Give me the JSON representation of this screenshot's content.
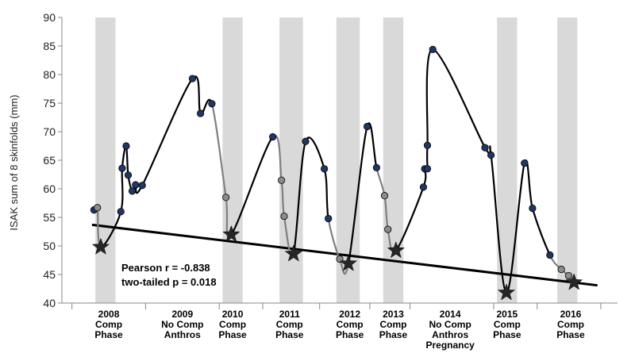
{
  "chart_data": {
    "type": "line",
    "ylabel": "ISAK sum of 8 skinfolds (mm)",
    "ylim": [
      40,
      90
    ],
    "yticks": [
      40,
      45,
      50,
      55,
      60,
      65,
      70,
      75,
      80,
      85,
      90
    ],
    "grid": false,
    "comp_phase_bands": [
      {
        "label": "2008 Comp Phase",
        "x_start": 0.9,
        "x_end": 1.2
      },
      {
        "label": "2010 Comp Phase",
        "x_start": 2.8,
        "x_end": 3.1
      },
      {
        "label": "2011 Comp Phase",
        "x_start": 3.65,
        "x_end": 4.0
      },
      {
        "label": "2012 Comp Phase",
        "x_start": 4.5,
        "x_end": 4.85
      },
      {
        "label": "2013 Comp Phase",
        "x_start": 5.2,
        "x_end": 5.5
      },
      {
        "label": "2015 Comp Phase",
        "x_start": 6.9,
        "x_end": 7.2
      },
      {
        "label": "2016 Comp Phase",
        "x_start": 7.8,
        "x_end": 8.1
      }
    ],
    "x_categories": [
      {
        "x": 1.1,
        "lines": [
          "2008",
          "Comp",
          "Phase"
        ]
      },
      {
        "x": 2.2,
        "lines": [
          "2009",
          "No Comp",
          "Anthros"
        ]
      },
      {
        "x": 2.95,
        "lines": [
          "2010",
          "Comp",
          "Phase"
        ]
      },
      {
        "x": 3.8,
        "lines": [
          "2011",
          "Comp",
          "Phase"
        ]
      },
      {
        "x": 4.7,
        "lines": [
          "2012",
          "Comp",
          "Phase"
        ]
      },
      {
        "x": 5.35,
        "lines": [
          "2013",
          "Comp",
          "Phase"
        ]
      },
      {
        "x": 6.2,
        "lines": [
          "2014",
          "No Comp",
          "Anthros",
          "Pregnancy"
        ]
      },
      {
        "x": 7.05,
        "lines": [
          "2015",
          "Comp",
          "Phase"
        ]
      },
      {
        "x": 8.0,
        "lines": [
          "2016",
          "Comp",
          "Phase"
        ]
      }
    ],
    "series": [
      {
        "points": [
          {
            "x": 0.88,
            "y": 56.3,
            "phase": "offseason"
          },
          {
            "x": 0.93,
            "y": 56.7,
            "phase": "comp"
          },
          {
            "x": 0.98,
            "y": 49.8,
            "phase": "comp_low"
          },
          {
            "x": 1.28,
            "y": 56.0,
            "phase": "offseason"
          },
          {
            "x": 1.3,
            "y": 63.6,
            "phase": "offseason"
          },
          {
            "x": 1.36,
            "y": 67.5,
            "phase": "offseason"
          },
          {
            "x": 1.39,
            "y": 62.4,
            "phase": "offseason"
          },
          {
            "x": 1.45,
            "y": 59.6,
            "phase": "offseason"
          },
          {
            "x": 1.5,
            "y": 60.7,
            "phase": "offseason"
          },
          {
            "x": 1.6,
            "y": 60.6,
            "phase": "offseason"
          },
          {
            "x": 2.35,
            "y": 79.3,
            "phase": "offseason"
          },
          {
            "x": 2.47,
            "y": 73.2,
            "phase": "offseason"
          },
          {
            "x": 2.64,
            "y": 74.9,
            "phase": "offseason"
          },
          {
            "x": 2.85,
            "y": 58.5,
            "phase": "comp"
          },
          {
            "x": 2.93,
            "y": 52.0,
            "phase": "comp_low"
          },
          {
            "x": 3.55,
            "y": 69.1,
            "phase": "offseason"
          },
          {
            "x": 3.68,
            "y": 61.5,
            "phase": "comp"
          },
          {
            "x": 3.72,
            "y": 55.2,
            "phase": "comp"
          },
          {
            "x": 3.86,
            "y": 48.6,
            "phase": "comp_low"
          },
          {
            "x": 4.04,
            "y": 68.3,
            "phase": "offseason"
          },
          {
            "x": 4.32,
            "y": 63.5,
            "phase": "offseason"
          },
          {
            "x": 4.38,
            "y": 54.8,
            "phase": "offseason"
          },
          {
            "x": 4.55,
            "y": 47.7,
            "phase": "comp"
          },
          {
            "x": 4.68,
            "y": 46.9,
            "phase": "comp_low"
          },
          {
            "x": 4.96,
            "y": 70.9,
            "phase": "offseason"
          },
          {
            "x": 5.1,
            "y": 63.7,
            "phase": "offseason"
          },
          {
            "x": 5.22,
            "y": 58.8,
            "phase": "comp"
          },
          {
            "x": 5.27,
            "y": 52.9,
            "phase": "comp"
          },
          {
            "x": 5.39,
            "y": 49.2,
            "phase": "comp_low"
          },
          {
            "x": 5.8,
            "y": 60.3,
            "phase": "offseason"
          },
          {
            "x": 5.82,
            "y": 63.5,
            "phase": "offseason"
          },
          {
            "x": 5.86,
            "y": 63.5,
            "phase": "offseason"
          },
          {
            "x": 5.86,
            "y": 67.6,
            "phase": "offseason"
          },
          {
            "x": 5.94,
            "y": 84.4,
            "phase": "offseason"
          },
          {
            "x": 6.72,
            "y": 67.2,
            "phase": "offseason"
          },
          {
            "x": 6.81,
            "y": 65.9,
            "phase": "offseason"
          },
          {
            "x": 7.04,
            "y": 41.8,
            "phase": "comp_low"
          },
          {
            "x": 7.31,
            "y": 64.5,
            "phase": "offseason"
          },
          {
            "x": 7.43,
            "y": 56.6,
            "phase": "offseason"
          },
          {
            "x": 7.69,
            "y": 48.4,
            "phase": "offseason"
          },
          {
            "x": 7.86,
            "y": 45.9,
            "phase": "comp"
          },
          {
            "x": 7.97,
            "y": 44.8,
            "phase": "comp"
          },
          {
            "x": 8.05,
            "y": 43.6,
            "phase": "comp_low"
          }
        ]
      }
    ],
    "trendline": {
      "x1": 0.85,
      "y1": 53.7,
      "x2": 8.4,
      "y2": 43.1
    },
    "annotations": [
      "Pearson r = -0.838",
      "two-tailed p = 0.018"
    ],
    "colors": {
      "band": "#d9d9d9",
      "offseason_marker": "#1f3764",
      "comp_marker": "#8c8c8c",
      "comp_line": "#7f7f7f",
      "low_star": "#262626",
      "line": "#000000"
    }
  }
}
